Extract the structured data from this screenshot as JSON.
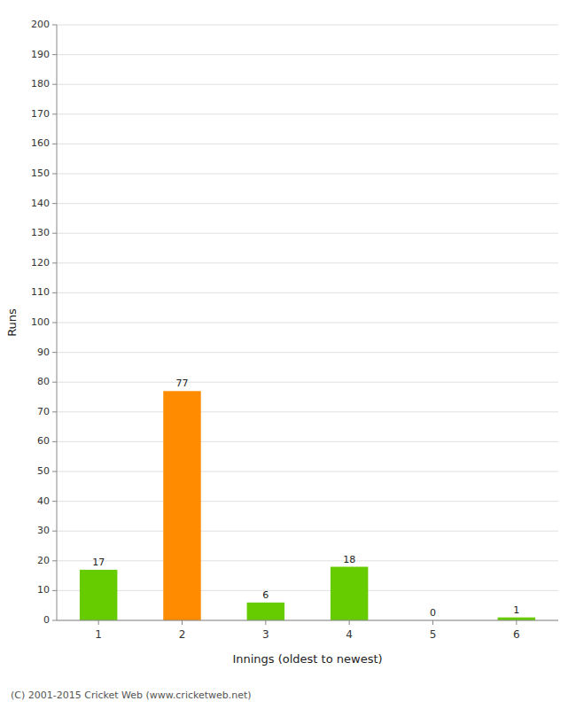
{
  "chart_data": {
    "type": "bar",
    "categories": [
      "1",
      "2",
      "3",
      "4",
      "5",
      "6"
    ],
    "values": [
      17,
      77,
      6,
      18,
      0,
      1
    ],
    "colors": [
      "#66cc00",
      "#ff8c00",
      "#66cc00",
      "#66cc00",
      "#66cc00",
      "#66cc00"
    ],
    "data_labels": true,
    "xlabel": "Innings (oldest to newest)",
    "ylabel": "Runs",
    "ylim": [
      0,
      200
    ],
    "yticks": [
      0,
      10,
      20,
      30,
      40,
      50,
      60,
      70,
      80,
      90,
      100,
      110,
      120,
      130,
      140,
      150,
      160,
      170,
      180,
      190,
      200
    ],
    "grid": true,
    "annotations": [
      "(C) 2001-2015 Cricket Web (www.cricketweb.net)"
    ]
  }
}
